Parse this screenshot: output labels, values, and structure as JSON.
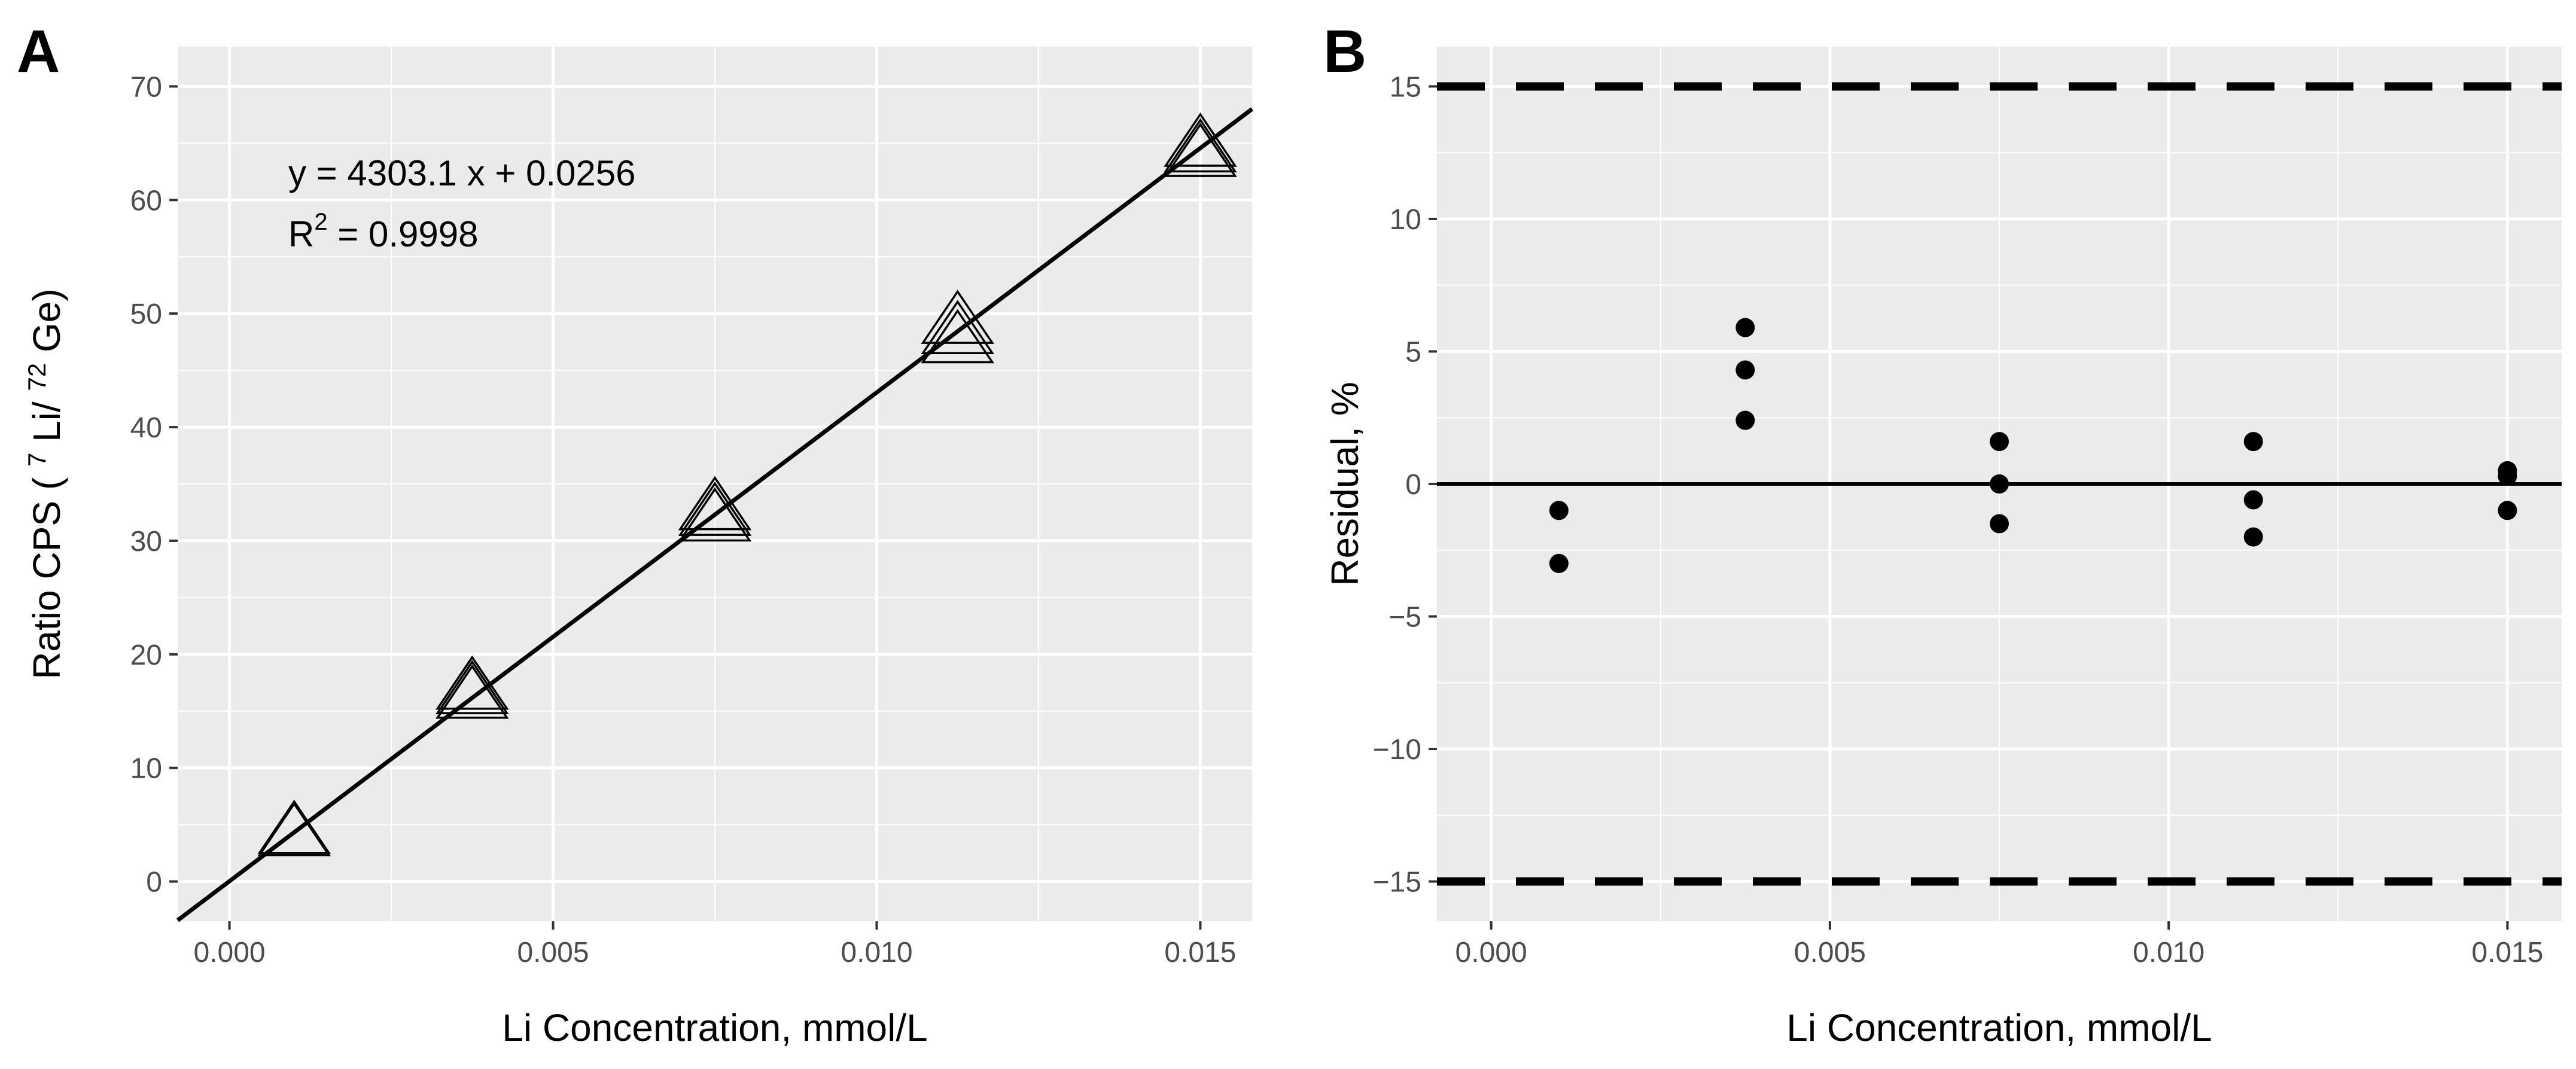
{
  "figure_labels": {
    "panel_a": "A",
    "panel_b": "B"
  },
  "colors": {
    "panel_background": "#ebebeb",
    "grid": "#ffffff",
    "ink": "#000000",
    "tick_text": "#4d4d4d",
    "page_background": "#ffffff"
  },
  "chart_data": [
    {
      "panel": "A",
      "type": "scatter",
      "title": "",
      "xlabel": "Li Concentration, mmol/L",
      "ylabel": {
        "prefix": "Ratio CPS ( ",
        "sup1": "7",
        "mid": " Li/ ",
        "sup2": "72",
        "suffix": " Ge)"
      },
      "xlim": [
        -0.0008,
        0.0158
      ],
      "ylim": [
        -3.5,
        73.5
      ],
      "x_ticks": [
        0.0,
        0.005,
        0.01,
        0.015
      ],
      "x_tick_labels": [
        "0.000",
        "0.005",
        "0.010",
        "0.015"
      ],
      "y_ticks": [
        0,
        10,
        20,
        30,
        40,
        50,
        60,
        70
      ],
      "y_tick_labels": [
        "0",
        "10",
        "20",
        "30",
        "40",
        "50",
        "60",
        "70"
      ],
      "grid": true,
      "marker": "open-triangle",
      "points": [
        {
          "x": 0.001,
          "y": 4.1
        },
        {
          "x": 0.001,
          "y": 4.3
        },
        {
          "x": 0.00375,
          "y": 16.2
        },
        {
          "x": 0.00375,
          "y": 16.6
        },
        {
          "x": 0.00375,
          "y": 17.0
        },
        {
          "x": 0.0075,
          "y": 31.8
        },
        {
          "x": 0.0075,
          "y": 32.3
        },
        {
          "x": 0.0075,
          "y": 32.8
        },
        {
          "x": 0.01125,
          "y": 47.5
        },
        {
          "x": 0.01125,
          "y": 48.3
        },
        {
          "x": 0.01125,
          "y": 49.2
        },
        {
          "x": 0.015,
          "y": 63.9
        },
        {
          "x": 0.015,
          "y": 64.3
        },
        {
          "x": 0.015,
          "y": 64.8
        }
      ],
      "fit_line": {
        "slope": 4303.1,
        "intercept": 0.0256
      },
      "annotations": {
        "equation": "y = 4303.1 x + 0.0256",
        "r2_base": "R",
        "r2_sup": "2",
        "r2_value": " = 0.9998"
      }
    },
    {
      "panel": "B",
      "type": "scatter",
      "title": "",
      "xlabel": "Li Concentration, mmol/L",
      "ylabel": "Residual, %",
      "xlim": [
        -0.0008,
        0.0158
      ],
      "ylim": [
        -16.5,
        16.5
      ],
      "x_ticks": [
        0.0,
        0.005,
        0.01,
        0.015
      ],
      "x_tick_labels": [
        "0.000",
        "0.005",
        "0.010",
        "0.015"
      ],
      "y_ticks": [
        -15,
        -10,
        -5,
        0,
        5,
        10,
        15
      ],
      "y_tick_labels": [
        "−15",
        "−10",
        "−5",
        "0",
        "5",
        "10",
        "15"
      ],
      "grid": true,
      "marker": "filled-circle",
      "points": [
        {
          "x": 0.001,
          "y": -1.0
        },
        {
          "x": 0.001,
          "y": -3.0
        },
        {
          "x": 0.00375,
          "y": 5.9
        },
        {
          "x": 0.00375,
          "y": 4.3
        },
        {
          "x": 0.00375,
          "y": 2.4
        },
        {
          "x": 0.0075,
          "y": 1.6
        },
        {
          "x": 0.0075,
          "y": 0.0
        },
        {
          "x": 0.0075,
          "y": -1.5
        },
        {
          "x": 0.01125,
          "y": 1.6
        },
        {
          "x": 0.01125,
          "y": -0.6
        },
        {
          "x": 0.01125,
          "y": -2.0
        },
        {
          "x": 0.015,
          "y": 0.5
        },
        {
          "x": 0.015,
          "y": 0.3
        },
        {
          "x": 0.015,
          "y": -1.0
        }
      ],
      "reference_lines": [
        {
          "y": 0,
          "style": "solid"
        },
        {
          "y": 15,
          "style": "dashed"
        },
        {
          "y": -15,
          "style": "dashed"
        }
      ]
    }
  ]
}
